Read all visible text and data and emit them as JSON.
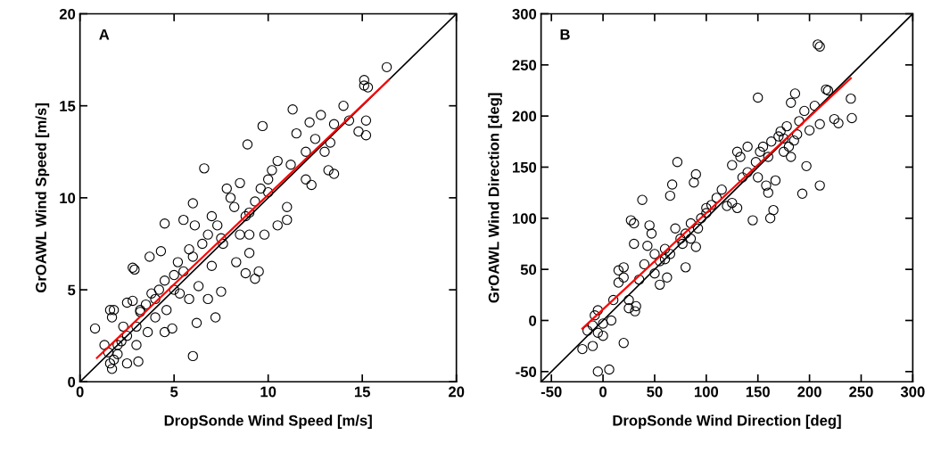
{
  "chart_data": [
    {
      "type": "scatter",
      "xlabel": "DropSonde Wind Speed [m/s]",
      "ylabel": "GrOAWL Wind Speed [m/s]",
      "annotations": [
        "A"
      ],
      "xlim": [
        0,
        20
      ],
      "ylim": [
        0,
        20
      ],
      "xticks": [
        0,
        5,
        10,
        15,
        20
      ],
      "yticks": [
        0,
        5,
        10,
        15,
        20
      ],
      "grid": false,
      "legend": false,
      "marker": "circle",
      "series": [
        {
          "color": "#000000",
          "x": [
            0.8,
            1.6,
            1.8,
            1.7,
            2.5,
            2.8,
            2.9,
            2.8,
            3.7,
            4.5,
            5.5,
            6.0,
            3.6,
            4.5,
            4.9,
            6.2,
            7.2,
            6.0,
            2.5,
            3.1,
            1.7,
            1.8,
            2.0,
            2.5,
            3.0,
            3.2,
            3.5,
            4.0,
            4.2,
            4.5,
            5.0,
            5.2,
            5.5,
            5.8,
            6.0,
            6.5,
            6.8,
            7.0,
            7.3,
            7.5,
            7.8,
            8.0,
            8.2,
            8.5,
            8.8,
            9.0,
            9.3,
            9.6,
            9.3,
            9.5,
            9.8,
            10.0,
            10.2,
            10.5,
            11.0,
            11.0,
            11.2,
            11.5,
            12.0,
            12.5,
            12.8,
            13.2,
            13.3,
            13.5,
            14.0,
            14.3,
            14.8,
            15.2,
            15.2,
            15.1,
            15.3,
            15.1,
            16.3,
            9.7,
            8.9,
            11.3,
            12.2,
            6.6,
            6.1,
            5.0,
            4.3,
            3.2,
            2.2,
            5.8,
            6.8,
            7.5,
            8.8,
            7.6,
            8.3,
            9.0,
            10.5,
            12.3,
            12.0,
            13.0,
            13.5,
            10.0,
            4.0,
            3.0,
            2.0,
            1.5,
            2.3,
            3.8,
            4.6,
            5.3,
            6.3,
            7.0,
            8.5,
            9.0,
            1.3,
            1.6
          ],
          "values": [
            2.9,
            3.9,
            3.9,
            3.5,
            4.3,
            4.4,
            6.1,
            6.2,
            6.8,
            8.6,
            8.8,
            9.7,
            2.7,
            2.7,
            2.9,
            3.2,
            3.5,
            1.4,
            1.0,
            1.1,
            0.7,
            1.2,
            2.0,
            2.5,
            3.0,
            3.8,
            4.2,
            4.5,
            5.0,
            5.5,
            5.8,
            6.5,
            6.0,
            7.2,
            6.8,
            7.5,
            8.0,
            9.0,
            8.5,
            7.8,
            10.5,
            10.0,
            9.5,
            10.8,
            9.0,
            8.0,
            9.8,
            10.5,
            5.6,
            6.0,
            8.0,
            10.3,
            11.5,
            12.0,
            9.5,
            8.8,
            11.8,
            13.5,
            12.5,
            13.2,
            14.5,
            11.5,
            13.0,
            14.0,
            15.0,
            14.2,
            13.6,
            13.4,
            14.2,
            16.1,
            16.0,
            16.4,
            17.1,
            13.9,
            12.9,
            14.8,
            14.1,
            11.6,
            8.5,
            5.0,
            7.1,
            3.9,
            2.2,
            4.5,
            4.5,
            4.9,
            5.9,
            7.5,
            6.5,
            7.0,
            8.5,
            10.7,
            11.0,
            12.5,
            11.3,
            11.0,
            3.5,
            2.0,
            1.5,
            1.6,
            3.0,
            4.8,
            3.9,
            4.8,
            5.2,
            6.3,
            8.0,
            9.2,
            2.0,
            1.0
          ]
        },
        {
          "type": "line",
          "color": "#000000",
          "marker": "none",
          "x": [
            0,
            20
          ],
          "values": [
            0,
            20
          ]
        },
        {
          "type": "line",
          "color": "#ff0000",
          "marker": "none",
          "x": [
            0.9,
            16.4
          ],
          "values": [
            1.3,
            16.4
          ]
        }
      ]
    },
    {
      "type": "scatter",
      "xlabel": "DropSonde Wind Direction [deg]",
      "ylabel": "GrOAWL Wind Direction [deg]",
      "annotations": [
        "B"
      ],
      "xlim": [
        -60,
        300
      ],
      "ylim": [
        -60,
        300
      ],
      "xticks": [
        -50,
        0,
        50,
        100,
        150,
        200,
        250,
        300
      ],
      "yticks": [
        -50,
        0,
        50,
        100,
        150,
        200,
        250,
        300
      ],
      "grid": false,
      "legend": false,
      "marker": "circle",
      "series": [
        {
          "color": "#000000",
          "x": [
            -5,
            6,
            20,
            0,
            -20,
            -10,
            -15,
            -8,
            -5,
            8,
            10,
            15,
            15,
            20,
            20,
            25,
            25,
            32,
            31,
            27,
            30,
            30,
            38,
            43,
            45,
            47,
            50,
            50,
            55,
            60,
            62,
            65,
            67,
            72,
            70,
            75,
            77,
            80,
            80,
            85,
            88,
            90,
            90,
            95,
            100,
            105,
            110,
            115,
            120,
            125,
            130,
            133,
            135,
            140,
            145,
            148,
            150,
            152,
            155,
            158,
            160,
            162,
            165,
            167,
            170,
            172,
            175,
            178,
            180,
            182,
            185,
            188,
            190,
            186,
            182,
            193,
            197,
            208,
            210,
            210,
            210,
            200,
            216,
            218,
            224,
            228,
            240,
            241,
            150,
            160,
            163,
            175,
            195,
            205,
            125,
            130,
            140,
            100,
            92,
            85,
            65,
            60,
            55,
            -10,
            -5,
            0,
            40,
            35
          ],
          "values": [
            -50,
            -48,
            -22,
            -15,
            -28,
            -25,
            -10,
            5,
            10,
            0,
            20,
            37,
            49,
            52,
            42,
            12,
            20,
            14,
            9,
            98,
            95,
            75,
            118,
            73,
            93,
            85,
            65,
            46,
            35,
            70,
            42,
            122,
            133,
            155,
            90,
            80,
            75,
            85,
            52,
            95,
            135,
            143,
            72,
            100,
            105,
            113,
            120,
            128,
            112,
            115,
            110,
            160,
            140,
            145,
            98,
            155,
            140,
            165,
            170,
            132,
            125,
            100,
            108,
            137,
            180,
            185,
            178,
            190,
            170,
            160,
            176,
            182,
            195,
            222,
            213,
            124,
            151,
            270,
            268,
            132,
            192,
            186,
            226,
            225,
            197,
            193,
            217,
            198,
            218,
            160,
            175,
            165,
            205,
            210,
            152,
            165,
            170,
            110,
            90,
            80,
            65,
            60,
            58,
            -5,
            -12,
            -3,
            55,
            40
          ]
        },
        {
          "type": "line",
          "color": "#000000",
          "marker": "none",
          "x": [
            -60,
            300
          ],
          "values": [
            -60,
            300
          ]
        },
        {
          "type": "line",
          "color": "#ff0000",
          "marker": "none",
          "x": [
            -20,
            240
          ],
          "values": [
            -8,
            237
          ]
        }
      ]
    }
  ]
}
